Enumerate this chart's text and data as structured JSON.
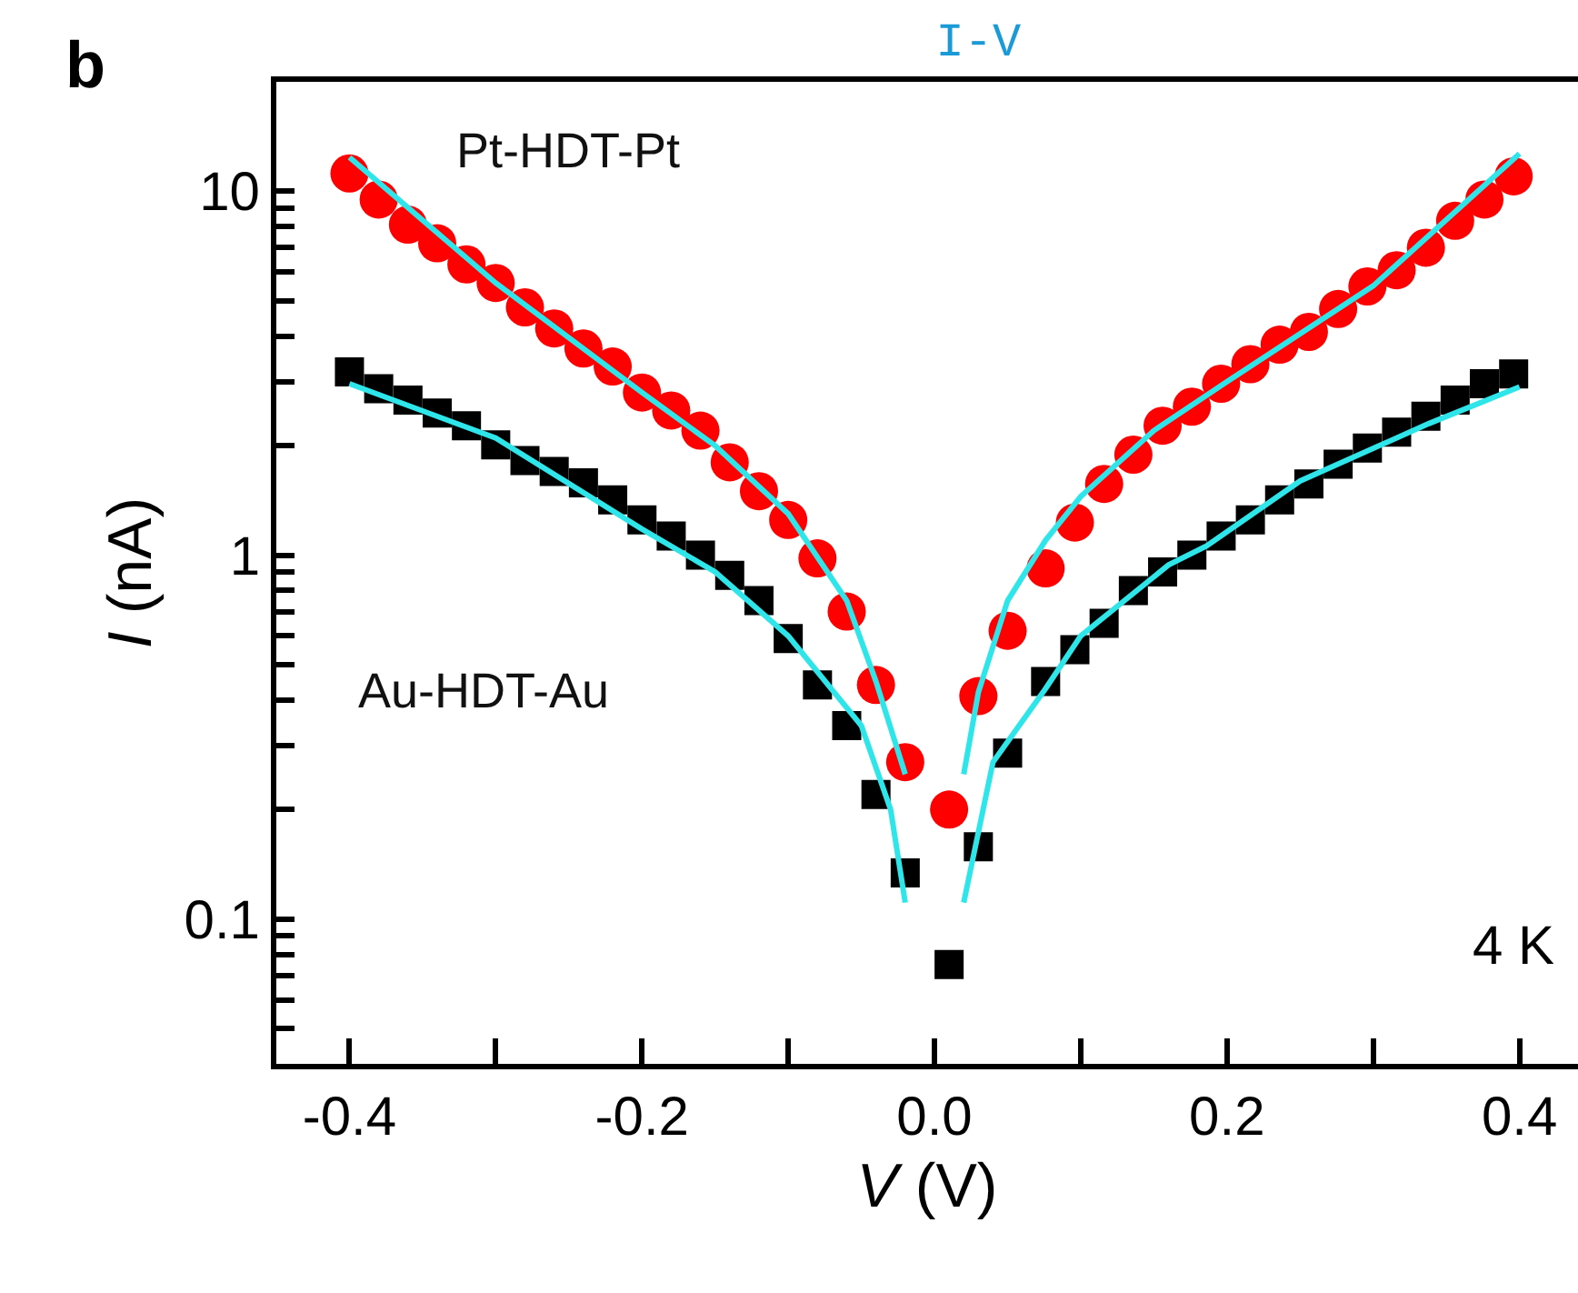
{
  "chart_data": {
    "type": "scatter",
    "title": "I-V",
    "xlabel": "V (V)",
    "ylabel": "I (nA)",
    "log": "y",
    "xlim": [
      -0.45,
      0.44
    ],
    "ylim": [
      0.04,
      20
    ],
    "xticks": [
      -0.4,
      {
        "value": -0.3,
        "label": null
      },
      -0.2,
      {
        "value": -0.1,
        "label": null
      },
      {
        "value": 0,
        "label": "0.0"
      },
      {
        "value": 0.1,
        "label": null
      },
      0.2,
      {
        "value": 0.3,
        "label": null
      },
      0.4
    ],
    "yticks": [
      {
        "value": 0.05,
        "label": null
      },
      {
        "value": 0.06,
        "label": null
      },
      {
        "value": 0.07,
        "label": null
      },
      {
        "value": 0.08,
        "label": null
      },
      {
        "value": 0.09,
        "label": null
      },
      0.1,
      {
        "value": 0.2,
        "label": null
      },
      {
        "value": 0.3,
        "label": null
      },
      {
        "value": 0.4,
        "label": null
      },
      {
        "value": 0.5,
        "label": null
      },
      {
        "value": 0.6,
        "label": null
      },
      {
        "value": 0.7,
        "label": null
      },
      {
        "value": 0.8,
        "label": null
      },
      {
        "value": 0.9,
        "label": null
      },
      1,
      {
        "value": 2,
        "label": null
      },
      {
        "value": 3,
        "label": null
      },
      {
        "value": 4,
        "label": null
      },
      {
        "value": 5,
        "label": null
      },
      {
        "value": 6,
        "label": null
      },
      {
        "value": 7,
        "label": null
      },
      {
        "value": 8,
        "label": null
      },
      {
        "value": 9,
        "label": null
      },
      10
    ],
    "legend": false,
    "series": [
      {
        "name": "Pt-HDT-Pt",
        "marker": "circle",
        "color": "#ff0000",
        "x": [
          -0.4,
          -0.38,
          -0.36,
          -0.34,
          -0.32,
          -0.3,
          -0.28,
          -0.26,
          -0.24,
          -0.22,
          -0.2,
          -0.18,
          -0.16,
          -0.14,
          -0.12,
          -0.1,
          -0.08,
          -0.06,
          -0.04,
          -0.02,
          0.01,
          0.03,
          0.05,
          0.076,
          0.096,
          0.116,
          0.136,
          0.156,
          0.176,
          0.196,
          0.216,
          0.236,
          0.256,
          0.276,
          0.296,
          0.316,
          0.336,
          0.356,
          0.376,
          0.396
        ],
        "values": [
          11.2,
          9.5,
          8.1,
          7.2,
          6.3,
          5.6,
          4.8,
          4.2,
          3.7,
          3.3,
          2.8,
          2.5,
          2.2,
          1.8,
          1.5,
          1.25,
          0.98,
          0.7,
          0.44,
          0.27,
          0.2,
          0.41,
          0.62,
          0.92,
          1.23,
          1.57,
          1.89,
          2.27,
          2.56,
          2.96,
          3.35,
          3.79,
          4.11,
          4.75,
          5.48,
          6.07,
          7.0,
          8.3,
          9.5,
          11.0
        ]
      },
      {
        "name": "Au-HDT-Au",
        "marker": "square",
        "color": "#000000",
        "x": [
          -0.4,
          -0.38,
          -0.36,
          -0.34,
          -0.32,
          -0.3,
          -0.28,
          -0.26,
          -0.24,
          -0.22,
          -0.2,
          -0.18,
          -0.16,
          -0.14,
          -0.12,
          -0.1,
          -0.08,
          -0.06,
          -0.04,
          -0.02,
          0.01,
          0.03,
          0.05,
          0.076,
          0.096,
          0.116,
          0.136,
          0.156,
          0.176,
          0.196,
          0.216,
          0.236,
          0.256,
          0.276,
          0.296,
          0.316,
          0.336,
          0.356,
          0.376,
          0.396
        ],
        "values": [
          3.19,
          2.87,
          2.67,
          2.46,
          2.27,
          2.01,
          1.82,
          1.7,
          1.58,
          1.42,
          1.25,
          1.13,
          1.0,
          0.88,
          0.75,
          0.59,
          0.44,
          0.34,
          0.22,
          0.134,
          0.075,
          0.158,
          0.286,
          0.45,
          0.55,
          0.65,
          0.8,
          0.9,
          1.0,
          1.13,
          1.25,
          1.42,
          1.57,
          1.78,
          1.97,
          2.18,
          2.41,
          2.67,
          2.96,
          3.15
        ]
      },
      {
        "type": "line",
        "marker": "none",
        "color": "#2ee6ea",
        "x": [
          -0.4,
          -0.3,
          -0.2,
          -0.15,
          -0.1,
          -0.06,
          -0.04,
          -0.02,
          0,
          0.02,
          0.03,
          0.05,
          0.076,
          0.1,
          0.15,
          0.2,
          0.3,
          0.4
        ],
        "values": [
          12.4,
          5.6,
          2.8,
          2.0,
          1.3,
          0.75,
          0.45,
          0.25,
          null,
          0.25,
          0.42,
          0.75,
          1.1,
          1.45,
          2.2,
          3.0,
          5.5,
          12.7
        ]
      },
      {
        "type": "line",
        "marker": "none",
        "color": "#2ee6ea",
        "x": [
          -0.4,
          -0.3,
          -0.2,
          -0.15,
          -0.1,
          -0.05,
          -0.03,
          -0.02,
          0,
          0.02,
          0.04,
          0.076,
          0.1,
          0.16,
          0.186,
          0.25,
          0.338,
          0.4
        ],
        "values": [
          2.96,
          2.1,
          1.18,
          0.9,
          0.6,
          0.34,
          0.2,
          0.111,
          null,
          0.111,
          0.27,
          0.43,
          0.6,
          0.94,
          1.06,
          1.6,
          2.3,
          2.9
        ]
      }
    ],
    "annotations": [
      "b",
      "4 K"
    ]
  }
}
